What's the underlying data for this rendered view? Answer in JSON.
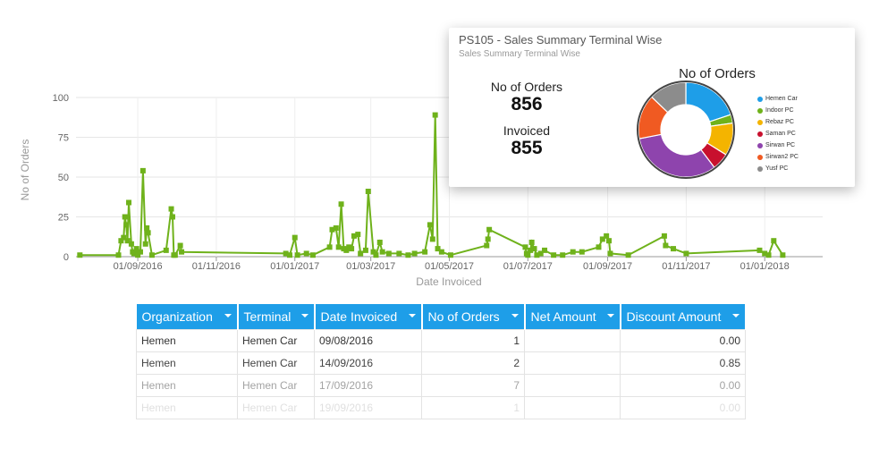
{
  "chart_data": {
    "type": "line",
    "xlabel": "Date Invoiced",
    "ylabel": "No of Orders",
    "ylim": [
      0,
      100
    ],
    "y_ticks": [
      0,
      25,
      50,
      75,
      100
    ],
    "x_range": [
      "2016-07-15",
      "2018-02-15"
    ],
    "x_ticks": [
      {
        "date": "2016-09-01",
        "label": "01/09/2016"
      },
      {
        "date": "2016-11-01",
        "label": "01/11/2016"
      },
      {
        "date": "2017-01-01",
        "label": "01/01/2017"
      },
      {
        "date": "2017-03-01",
        "label": "01/03/2017"
      },
      {
        "date": "2017-05-01",
        "label": "01/05/2017"
      },
      {
        "date": "2017-07-01",
        "label": "01/07/2017"
      },
      {
        "date": "2017-09-01",
        "label": "01/09/2017"
      },
      {
        "date": "2017-11-01",
        "label": "01/11/2017"
      },
      {
        "date": "2018-01-01",
        "label": "01/01/2018"
      }
    ],
    "grid": "vertical",
    "color": "#6fb21b",
    "points": [
      [
        "2016-07-18",
        1
      ],
      [
        "2016-08-17",
        1
      ],
      [
        "2016-08-19",
        10
      ],
      [
        "2016-08-21",
        12
      ],
      [
        "2016-08-22",
        25
      ],
      [
        "2016-08-23",
        20
      ],
      [
        "2016-08-24",
        10
      ],
      [
        "2016-08-25",
        34
      ],
      [
        "2016-08-27",
        8
      ],
      [
        "2016-08-28",
        3
      ],
      [
        "2016-08-29",
        2
      ],
      [
        "2016-08-31",
        5
      ],
      [
        "2016-09-01",
        1
      ],
      [
        "2016-09-03",
        3
      ],
      [
        "2016-09-05",
        54
      ],
      [
        "2016-09-07",
        8
      ],
      [
        "2016-09-08",
        18
      ],
      [
        "2016-09-09",
        15
      ],
      [
        "2016-09-12",
        1
      ],
      [
        "2016-09-23",
        4
      ],
      [
        "2016-09-27",
        30
      ],
      [
        "2016-09-28",
        25
      ],
      [
        "2016-09-29",
        1
      ],
      [
        "2016-09-30",
        1
      ],
      [
        "2016-10-04",
        7
      ],
      [
        "2016-10-05",
        3
      ],
      [
        "2016-12-25",
        2
      ],
      [
        "2016-12-28",
        1
      ],
      [
        "2017-01-01",
        12
      ],
      [
        "2017-01-03",
        1
      ],
      [
        "2017-01-10",
        2
      ],
      [
        "2017-01-15",
        1
      ],
      [
        "2017-01-28",
        6
      ],
      [
        "2017-01-30",
        17
      ],
      [
        "2017-02-02",
        18
      ],
      [
        "2017-02-04",
        6
      ],
      [
        "2017-02-06",
        33
      ],
      [
        "2017-02-08",
        5
      ],
      [
        "2017-02-10",
        4
      ],
      [
        "2017-02-12",
        6
      ],
      [
        "2017-02-14",
        5
      ],
      [
        "2017-02-16",
        13
      ],
      [
        "2017-02-19",
        14
      ],
      [
        "2017-02-21",
        2
      ],
      [
        "2017-02-25",
        4
      ],
      [
        "2017-02-27",
        41
      ],
      [
        "2017-03-03",
        3
      ],
      [
        "2017-03-05",
        1
      ],
      [
        "2017-03-08",
        9
      ],
      [
        "2017-03-10",
        3
      ],
      [
        "2017-03-15",
        2
      ],
      [
        "2017-03-23",
        2
      ],
      [
        "2017-03-30",
        1
      ],
      [
        "2017-04-04",
        2
      ],
      [
        "2017-04-12",
        3
      ],
      [
        "2017-04-16",
        20
      ],
      [
        "2017-04-18",
        11
      ],
      [
        "2017-04-20",
        89
      ],
      [
        "2017-04-22",
        5
      ],
      [
        "2017-04-25",
        3
      ],
      [
        "2017-05-02",
        1
      ],
      [
        "2017-05-30",
        7
      ],
      [
        "2017-05-31",
        11
      ],
      [
        "2017-06-01",
        17
      ],
      [
        "2017-06-29",
        6
      ],
      [
        "2017-06-30",
        2
      ],
      [
        "2017-07-01",
        1
      ],
      [
        "2017-07-03",
        4
      ],
      [
        "2017-07-04",
        9
      ],
      [
        "2017-07-06",
        5
      ],
      [
        "2017-07-08",
        1
      ],
      [
        "2017-07-11",
        2
      ],
      [
        "2017-07-14",
        4
      ],
      [
        "2017-07-21",
        1
      ],
      [
        "2017-07-28",
        1
      ],
      [
        "2017-08-05",
        3
      ],
      [
        "2017-08-12",
        3
      ],
      [
        "2017-08-25",
        6
      ],
      [
        "2017-08-28",
        11
      ],
      [
        "2017-08-31",
        13
      ],
      [
        "2017-09-02",
        10
      ],
      [
        "2017-09-03",
        2
      ],
      [
        "2017-09-17",
        1
      ],
      [
        "2017-10-15",
        13
      ],
      [
        "2017-10-16",
        7
      ],
      [
        "2017-10-22",
        5
      ],
      [
        "2017-11-01",
        2
      ],
      [
        "2017-12-28",
        4
      ],
      [
        "2018-01-01",
        2
      ],
      [
        "2018-01-04",
        1
      ],
      [
        "2018-01-08",
        10
      ],
      [
        "2018-01-15",
        1
      ]
    ]
  },
  "summary_card": {
    "title": "PS105 - Sales Summary Terminal Wise",
    "subtitle": "Sales Summary Terminal Wise",
    "orders_label": "No of Orders",
    "orders_value": "856",
    "invoiced_label": "Invoiced",
    "invoiced_value": "855",
    "donut_title": "No of Orders",
    "donut": {
      "type": "pie",
      "slices": [
        {
          "name": "Hemen Car",
          "value": 170,
          "color": "#1e9ee8"
        },
        {
          "name": "Indoor PC",
          "value": 25,
          "color": "#6fb21b"
        },
        {
          "name": "Rebaz PC",
          "value": 95,
          "color": "#f4b400"
        },
        {
          "name": "Saman PC",
          "value": 50,
          "color": "#c8102e"
        },
        {
          "name": "Sirwan PC",
          "value": 276,
          "color": "#8e44ad"
        },
        {
          "name": "Sirwan2 PC",
          "value": 130,
          "color": "#f05a22"
        },
        {
          "name": "Yusf PC",
          "value": 110,
          "color": "#8c8c8c"
        }
      ]
    }
  },
  "table": {
    "columns": [
      {
        "label": "Organization"
      },
      {
        "label": "Terminal"
      },
      {
        "label": "Date Invoiced"
      },
      {
        "label": "No of Orders"
      },
      {
        "label": "Net Amount"
      },
      {
        "label": "Discount Amount"
      }
    ],
    "rows": [
      [
        "Hemen",
        "Hemen Car",
        "09/08/2016",
        "1",
        "",
        "0.00"
      ],
      [
        "Hemen",
        "Hemen Car",
        "14/09/2016",
        "2",
        "",
        "0.85"
      ],
      [
        "Hemen",
        "Hemen Car",
        "17/09/2016",
        "7",
        "",
        "0.00"
      ],
      [
        "Hemen",
        "Hemen Car",
        "19/09/2016",
        "1",
        "",
        "0.00"
      ]
    ]
  }
}
